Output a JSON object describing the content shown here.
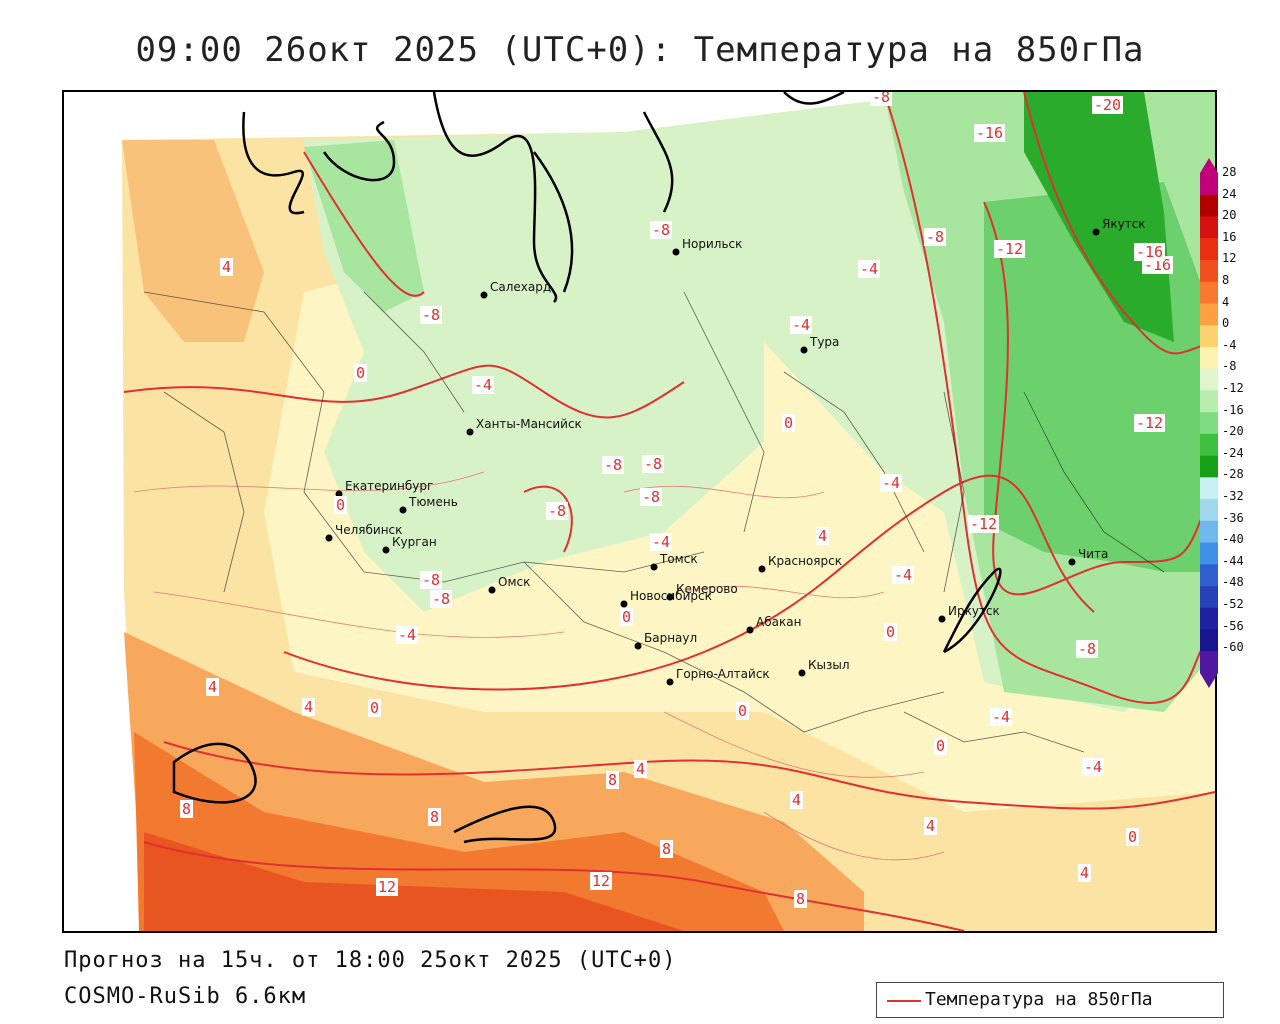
{
  "title": "09:00 26окт 2025 (UTC+0): Температура на 850гПа",
  "forecast_text": "Прогноз на 15ч. от 18:00 25окт 2025 (UTC+0)",
  "model_text": "COSMO-RuSib 6.6км",
  "legend": {
    "label": "Температура на 850гПа",
    "line_color": "#e03030"
  },
  "colorbar": {
    "ticks": [
      "28",
      "24",
      "20",
      "16",
      "12",
      "8",
      "4",
      "0",
      "-4",
      "-8",
      "-12",
      "-16",
      "-20",
      "-24",
      "-28",
      "-32",
      "-36",
      "-40",
      "-44",
      "-48",
      "-52",
      "-56",
      "-60"
    ],
    "colors": [
      "#c0007a",
      "#b00000",
      "#d41010",
      "#e83010",
      "#f05020",
      "#f87830",
      "#fca040",
      "#fdd070",
      "#fdf2b0",
      "#dff5d0",
      "#b8ecb0",
      "#80dc80",
      "#40c040",
      "#18a018",
      "#c8f0f0",
      "#a0d8f0",
      "#70b8f0",
      "#4090e8",
      "#3060d0",
      "#2840b8",
      "#2020a0",
      "#1a1490",
      "#5018a0"
    ]
  },
  "cities": [
    {
      "name": "Салехард"
    },
    {
      "name": "Норильск"
    },
    {
      "name": "Тура"
    },
    {
      "name": "Якутск"
    },
    {
      "name": "Ханты-Мансийск"
    },
    {
      "name": "Екатеринбург"
    },
    {
      "name": "Тюмень"
    },
    {
      "name": "Челябинск"
    },
    {
      "name": "Курган"
    },
    {
      "name": "Омск"
    },
    {
      "name": "Новосибирск"
    },
    {
      "name": "Томск"
    },
    {
      "name": "Кемерово"
    },
    {
      "name": "Барнаул"
    },
    {
      "name": "Горно-Алтайск"
    },
    {
      "name": "Абакан"
    },
    {
      "name": "Красноярск"
    },
    {
      "name": "Кызыл"
    },
    {
      "name": "Иркутск"
    },
    {
      "name": "Чита"
    }
  ],
  "isotherm_labels": [
    "-8",
    "-16",
    "-20",
    "-16",
    "-8",
    "-12",
    "-16",
    "-8",
    "-4",
    "-4",
    "-8",
    "-8",
    "-4",
    "-12",
    "-4",
    "-8",
    "-8",
    "-8",
    "-4",
    "0",
    "4",
    "0",
    "4",
    "-8",
    "-4",
    "0",
    "-4",
    "-8",
    "-12",
    "-8",
    "0",
    "0",
    "4",
    "8",
    "8",
    "8",
    "12",
    "12",
    "8",
    "4",
    "4",
    "0",
    "4",
    "0",
    "-4",
    "-4",
    "0",
    "4",
    "8",
    "4",
    "0"
  ]
}
